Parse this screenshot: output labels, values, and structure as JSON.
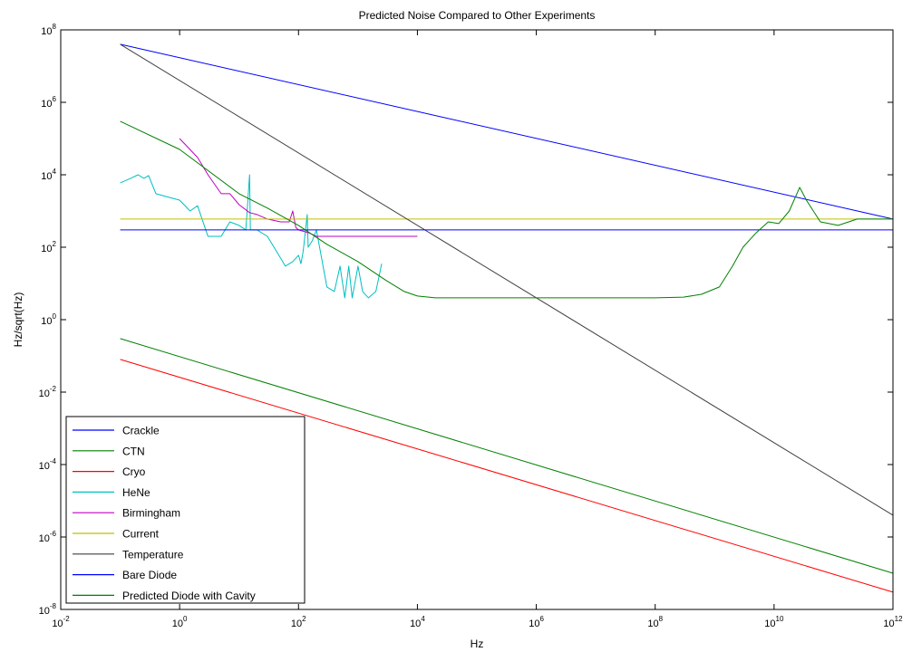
{
  "chart_data": {
    "type": "line",
    "title": "Predicted Noise Compared to Other Experiments",
    "xlabel": "Hz",
    "ylabel": "Hz/sqrt(Hz)",
    "xscale": "log",
    "yscale": "log",
    "xlim": [
      0.01,
      1000000000000.0
    ],
    "ylim": [
      1e-08,
      100000000.0
    ],
    "x_ticks": [
      {
        "value": 0.01,
        "base": "10",
        "exp": "-2"
      },
      {
        "value": 1,
        "base": "10",
        "exp": "0"
      },
      {
        "value": 100,
        "base": "10",
        "exp": "2"
      },
      {
        "value": 10000,
        "base": "10",
        "exp": "4"
      },
      {
        "value": 1000000,
        "base": "10",
        "exp": "6"
      },
      {
        "value": 100000000,
        "base": "10",
        "exp": "8"
      },
      {
        "value": 10000000000,
        "base": "10",
        "exp": "10"
      },
      {
        "value": 1000000000000,
        "base": "10",
        "exp": "12"
      }
    ],
    "y_ticks": [
      {
        "value": 1e-08,
        "base": "10",
        "exp": "-8"
      },
      {
        "value": 1e-06,
        "base": "10",
        "exp": "-6"
      },
      {
        "value": 0.0001,
        "base": "10",
        "exp": "-4"
      },
      {
        "value": 0.01,
        "base": "10",
        "exp": "-2"
      },
      {
        "value": 1,
        "base": "10",
        "exp": "0"
      },
      {
        "value": 100,
        "base": "10",
        "exp": "2"
      },
      {
        "value": 10000,
        "base": "10",
        "exp": "4"
      },
      {
        "value": 1000000,
        "base": "10",
        "exp": "6"
      },
      {
        "value": 100000000,
        "base": "10",
        "exp": "8"
      }
    ],
    "grid": false,
    "legend_position": "bottom-left",
    "series": [
      {
        "name": "Crackle",
        "color": "#0000ff",
        "points": [
          [
            0.1,
            40000000
          ],
          [
            1000000000000.0,
            600
          ]
        ]
      },
      {
        "name": "CTN",
        "color": "#008000",
        "points": [
          [
            0.1,
            0.3
          ],
          [
            1000000000000.0,
            1e-07
          ]
        ]
      },
      {
        "name": "Cryo",
        "color": "#ff0000",
        "points": [
          [
            0.1,
            0.08
          ],
          [
            1000000000000.0,
            3e-08
          ]
        ]
      },
      {
        "name": "HeNe",
        "color": "#00bfbf",
        "points": [
          [
            0.1,
            6000
          ],
          [
            0.15,
            8000
          ],
          [
            0.2,
            10000
          ],
          [
            0.25,
            8000
          ],
          [
            0.3,
            9500
          ],
          [
            0.4,
            3000
          ],
          [
            0.6,
            2500
          ],
          [
            1.0,
            2000
          ],
          [
            1.5,
            1000
          ],
          [
            2.0,
            1400
          ],
          [
            3.0,
            200
          ],
          [
            5.0,
            200
          ],
          [
            7.0,
            500
          ],
          [
            10,
            400
          ],
          [
            13,
            300
          ],
          [
            15,
            10000
          ],
          [
            15.5,
            300
          ],
          [
            20,
            300
          ],
          [
            30,
            200
          ],
          [
            50,
            50
          ],
          [
            60,
            30
          ],
          [
            80,
            40
          ],
          [
            100,
            60
          ],
          [
            110,
            35
          ],
          [
            120,
            80
          ],
          [
            140,
            800
          ],
          [
            145,
            100
          ],
          [
            170,
            150
          ],
          [
            200,
            300
          ],
          [
            300,
            8
          ],
          [
            400,
            6
          ],
          [
            500,
            30
          ],
          [
            600,
            4
          ],
          [
            700,
            30
          ],
          [
            800,
            4
          ],
          [
            1000,
            30
          ],
          [
            1200,
            6
          ],
          [
            1500,
            4
          ],
          [
            2000,
            6
          ],
          [
            2500,
            35
          ]
        ]
      },
      {
        "name": "Birmingham",
        "color": "#bf00bf",
        "points": [
          [
            1,
            100000
          ],
          [
            2,
            30000
          ],
          [
            3,
            10000
          ],
          [
            5,
            3000
          ],
          [
            7,
            3000
          ],
          [
            10,
            1500
          ],
          [
            15,
            900
          ],
          [
            20,
            800
          ],
          [
            30,
            600
          ],
          [
            50,
            500
          ],
          [
            70,
            500
          ],
          [
            80,
            1000
          ],
          [
            90,
            350
          ],
          [
            100,
            300
          ],
          [
            150,
            250
          ],
          [
            200,
            200
          ],
          [
            1000,
            200
          ],
          [
            3000,
            200
          ],
          [
            10000,
            200
          ]
        ]
      },
      {
        "name": "Current",
        "color": "#bfbf00",
        "points": [
          [
            0.1,
            600
          ],
          [
            1000000000000.0,
            600
          ]
        ]
      },
      {
        "name": "Temperature",
        "color": "#404040",
        "points": [
          [
            0.1,
            40000000
          ],
          [
            1000000000000.0,
            4e-06
          ]
        ]
      },
      {
        "name": "Bare Diode",
        "color": "#0000ff",
        "points": [
          [
            0.1,
            300
          ],
          [
            1000000000000.0,
            300
          ]
        ]
      },
      {
        "name": "Predicted Diode with Cavity",
        "color": "#008000",
        "points": [
          [
            0.1,
            300000
          ],
          [
            1,
            50000
          ],
          [
            10,
            3000
          ],
          [
            30,
            1200
          ],
          [
            100,
            400
          ],
          [
            300,
            120
          ],
          [
            1000,
            40
          ],
          [
            3000,
            12
          ],
          [
            6000,
            6
          ],
          [
            10000,
            4.5
          ],
          [
            20000,
            4
          ],
          [
            100000,
            4
          ],
          [
            1000000.0,
            4
          ],
          [
            100000000.0,
            4
          ],
          [
            300000000.0,
            4.2
          ],
          [
            600000000.0,
            5
          ],
          [
            1200000000.0,
            8
          ],
          [
            2000000000.0,
            30
          ],
          [
            3000000000.0,
            100
          ],
          [
            5000000000.0,
            250
          ],
          [
            8000000000.0,
            500
          ],
          [
            12000000000.0,
            450
          ],
          [
            18000000000.0,
            1000
          ],
          [
            27000000000.0,
            4500
          ],
          [
            35000000000.0,
            2000
          ],
          [
            60000000000.0,
            500
          ],
          [
            120000000000.0,
            400
          ],
          [
            250000000000.0,
            600
          ],
          [
            500000000000.0,
            600
          ],
          [
            1000000000000.0,
            600
          ]
        ]
      }
    ]
  }
}
